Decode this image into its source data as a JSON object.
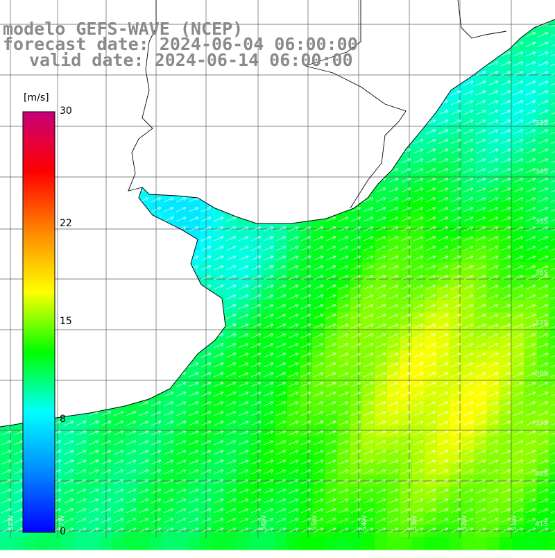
{
  "title": {
    "line1": "modelo GEFS-WAVE (NCEP)",
    "line2": "forecast date: 2024-06-04 06:00:00",
    "line3": "valid date: 2024-06-14 06:00:00"
  },
  "colorbar": {
    "unit": "[m/s]",
    "ticks": [
      {
        "value": 30,
        "label": "30"
      },
      {
        "value": 22,
        "label": "22"
      },
      {
        "value": 15,
        "label": "15"
      },
      {
        "value": 8,
        "label": "8"
      },
      {
        "value": 0,
        "label": "0"
      }
    ],
    "range": [
      0,
      30
    ],
    "colors": [
      "#0000ff",
      "#0088ff",
      "#00ffff",
      "#00ff00",
      "#ffff00",
      "#ff8800",
      "#ff0000",
      "#c80078"
    ]
  },
  "map": {
    "lat_labels": [
      "33S",
      "34S",
      "35S",
      "36S",
      "37S",
      "38S",
      "39S",
      "40S",
      "41S"
    ],
    "lon_labels": [
      "58W",
      "57W",
      "56W",
      "55W",
      "54W",
      "53W",
      "52W",
      "51W"
    ],
    "grid": true,
    "arrow_direction": "northeast",
    "arrow_color": "#ffffff",
    "land_color": "#ffffff",
    "coast_color": "#000000"
  }
}
